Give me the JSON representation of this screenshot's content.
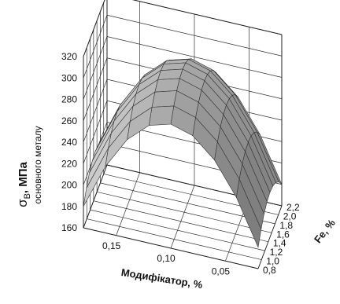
{
  "chart_data": {
    "type": "surface",
    "xlabel": "Модифікатор, %",
    "ylabel": "Fe, %",
    "zlabel_main": "σ",
    "zlabel_sub": "В",
    "zlabel_unit": ", МПа",
    "zlabel_note": "основного металу",
    "x_ticks": [
      "0,15",
      "0,10",
      "0,05"
    ],
    "x_range": [
      0.02,
      0.18
    ],
    "y_ticks": [
      "0,8",
      "1,0",
      "1,2",
      "1,4",
      "1,6",
      "1,8",
      "2,0",
      "2,2"
    ],
    "y_range": [
      0.8,
      2.2
    ],
    "z_ticks": [
      "160",
      "180",
      "200",
      "220",
      "240",
      "260",
      "280",
      "300",
      "320"
    ],
    "z_range": [
      160,
      320
    ],
    "surface_model": {
      "z_max": 298,
      "x_opt": 0.1,
      "y_opt": 1.5,
      "x_curvature": 15000,
      "y_curvature": 45
    },
    "grid": true
  }
}
